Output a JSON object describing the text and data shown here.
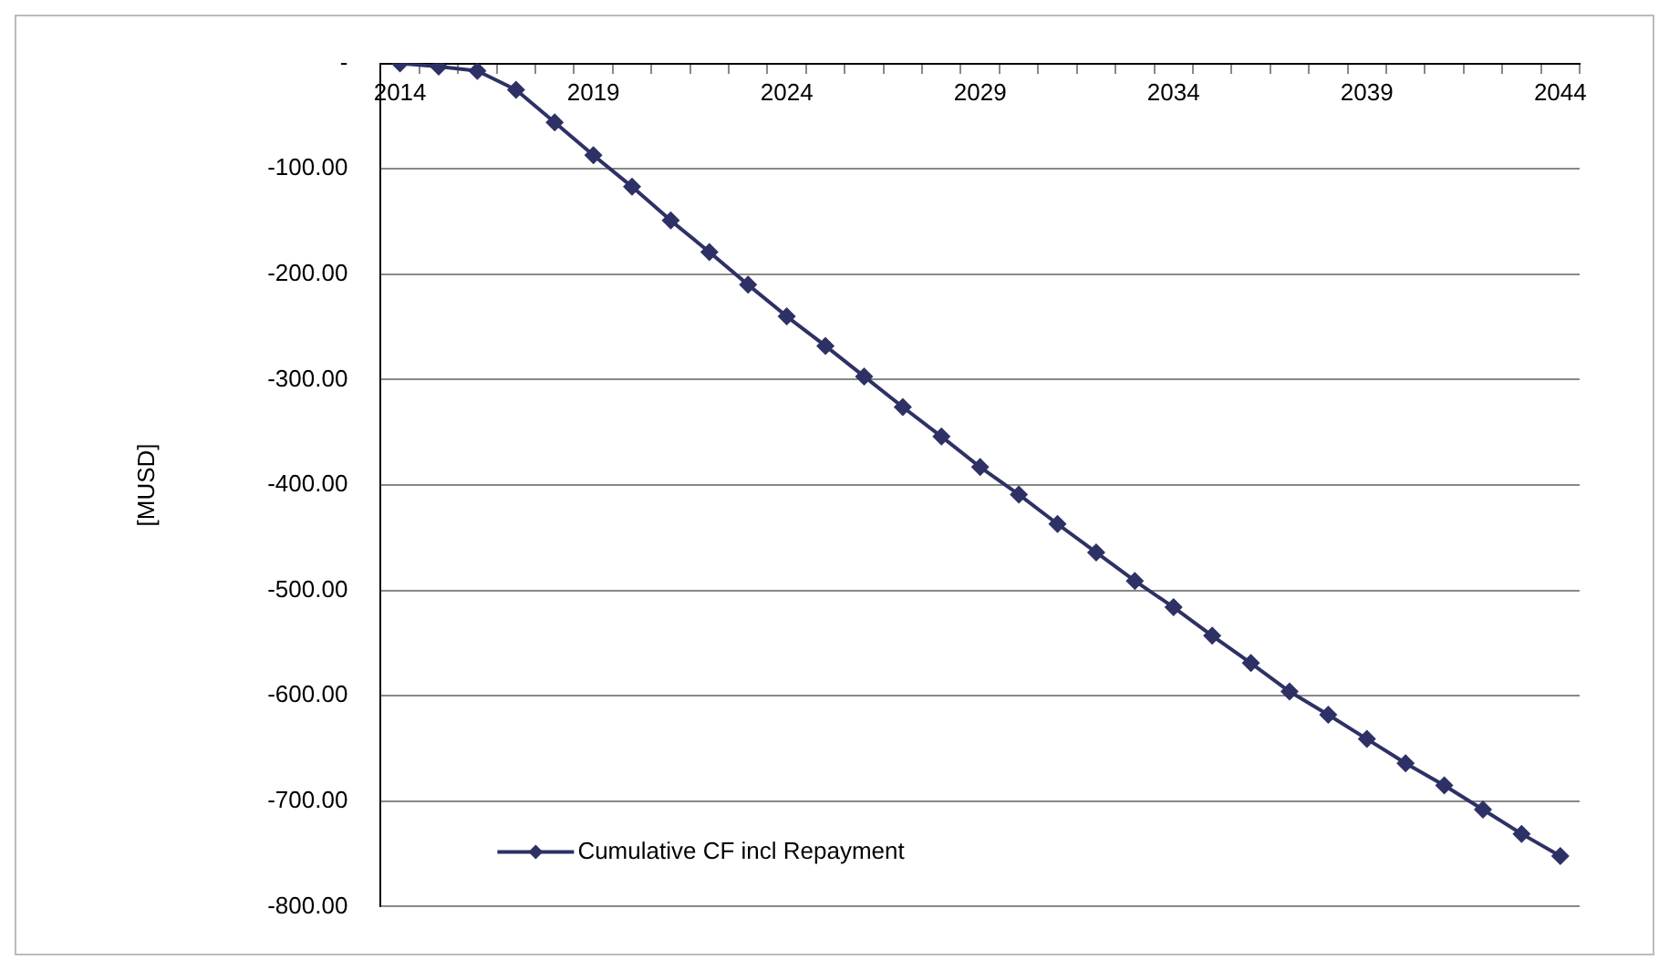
{
  "chart_data": {
    "type": "line",
    "ylabel": "[MUSD]",
    "categories": [
      "2014",
      null,
      null,
      null,
      null,
      "2019",
      null,
      null,
      null,
      null,
      "2024",
      null,
      null,
      null,
      null,
      "2029",
      null,
      null,
      null,
      null,
      "2034",
      null,
      null,
      null,
      null,
      "2039",
      null,
      null,
      null,
      null,
      "2044"
    ],
    "series": [
      {
        "name": "Cumulative CF incl Repayment",
        "color": "#2e3165",
        "values": [
          0,
          -3,
          -7,
          -25,
          -56,
          -87,
          -117,
          -149,
          -179,
          -210,
          -240,
          -268,
          -297,
          -326,
          -354,
          -383,
          -409,
          -437,
          -464,
          -491,
          -516,
          -543,
          -569,
          -596,
          -618,
          -641,
          -664,
          -685,
          -708,
          -731,
          -752
        ]
      }
    ],
    "ylim": [
      -800,
      0
    ],
    "yticks": [
      {
        "value": 0,
        "label": "-"
      },
      {
        "value": -100,
        "label": "-100.00"
      },
      {
        "value": -200,
        "label": "-200.00"
      },
      {
        "value": -300,
        "label": "-300.00"
      },
      {
        "value": -400,
        "label": "-400.00"
      },
      {
        "value": -500,
        "label": "-500.00"
      },
      {
        "value": -600,
        "label": "-600.00"
      },
      {
        "value": -700,
        "label": "-700.00"
      },
      {
        "value": -800,
        "label": "-800.00"
      }
    ],
    "grid": "y",
    "legend": "bottom left",
    "marker": "diamond",
    "line_style": "solid"
  }
}
